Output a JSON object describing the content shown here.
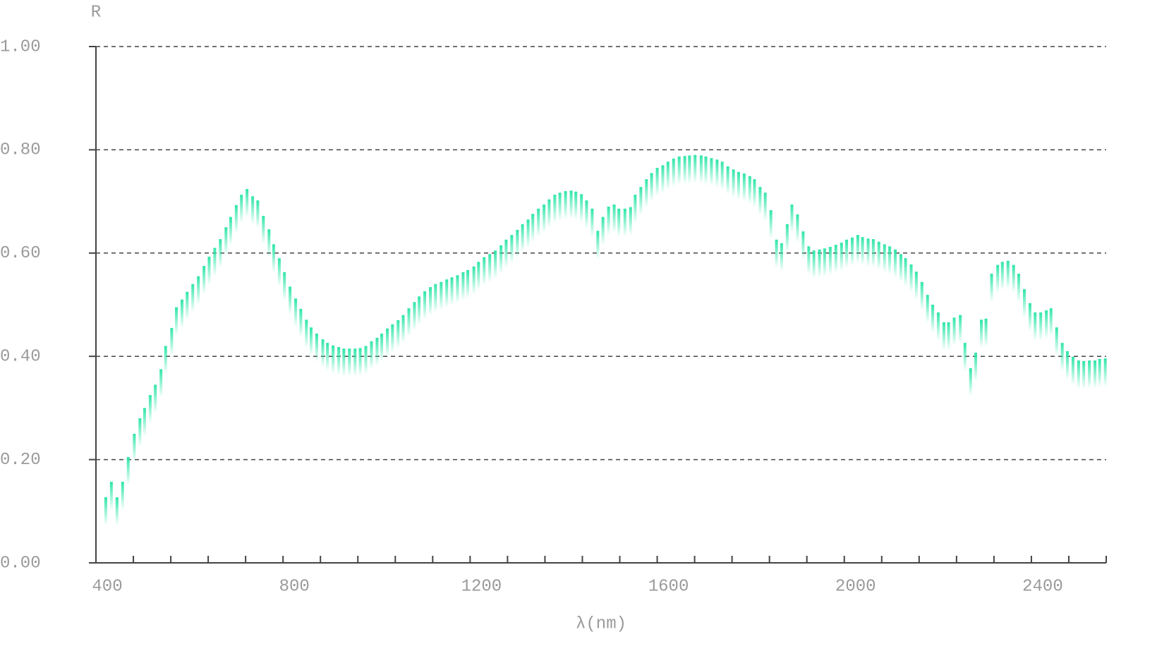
{
  "chart_data": {
    "type": "spectrum",
    "y_label": "R",
    "x_label": "λ(nm)",
    "color": "#2ee6a8",
    "grid": true,
    "xlim": [
      400,
      2560
    ],
    "ylim": [
      0,
      1
    ],
    "xticks": [
      400,
      800,
      1200,
      1600,
      2000,
      2400
    ],
    "xticks_minor": [
      400,
      480,
      560,
      640,
      720,
      800,
      880,
      960,
      1040,
      1120,
      1200,
      1280,
      1360,
      1440,
      1520,
      1600,
      1680,
      1760,
      1840,
      1920,
      2000,
      2080,
      2160,
      2240,
      2320,
      2400,
      2480,
      2560
    ],
    "yticks": [
      {
        "value": 0,
        "label": "0.00"
      },
      {
        "value": 0.2,
        "label": "0.20"
      },
      {
        "value": 0.4,
        "label": "0.40"
      },
      {
        "value": 0.6,
        "label": "0.60"
      },
      {
        "value": 0.8,
        "label": "0.80"
      },
      {
        "value": 1,
        "label": "1.00"
      }
    ],
    "x": [
      421,
      433,
      445,
      457,
      469,
      482,
      494,
      504,
      516,
      527,
      539,
      549,
      562,
      572,
      584,
      595,
      607,
      619,
      631,
      642,
      654,
      666,
      678,
      688,
      700,
      711,
      723,
      735,
      746,
      758,
      770,
      780,
      792,
      803,
      815,
      827,
      838,
      850,
      860,
      872,
      885,
      895,
      907,
      919,
      930,
      942,
      954,
      965,
      977,
      989,
      1001,
      1011,
      1023,
      1034,
      1046,
      1057,
      1069,
      1081,
      1091,
      1103,
      1115,
      1126,
      1138,
      1150,
      1161,
      1173,
      1185,
      1195,
      1208,
      1218,
      1230,
      1242,
      1254,
      1266,
      1277,
      1289,
      1301,
      1312,
      1324,
      1334,
      1346,
      1358,
      1369,
      1381,
      1392,
      1404,
      1416,
      1426,
      1438,
      1449,
      1461,
      1473,
      1484,
      1496,
      1508,
      1518,
      1531,
      1543,
      1553,
      1565,
      1577,
      1588,
      1600,
      1612,
      1623,
      1635,
      1647,
      1659,
      1669,
      1681,
      1694,
      1704,
      1716,
      1728,
      1739,
      1751,
      1763,
      1774,
      1786,
      1798,
      1808,
      1820,
      1831,
      1843,
      1855,
      1866,
      1878,
      1888,
      1900,
      1912,
      1924,
      1935,
      1947,
      1958,
      1970,
      1982,
      1994,
      2005,
      2017,
      2029,
      2039,
      2051,
      2062,
      2074,
      2086,
      2097,
      2109,
      2121,
      2131,
      2143,
      2154,
      2166,
      2178,
      2189,
      2201,
      2213,
      2223,
      2235,
      2248,
      2258,
      2270,
      2281,
      2293,
      2303,
      2315,
      2328,
      2338,
      2350,
      2362,
      2373,
      2385,
      2397,
      2408,
      2420,
      2432,
      2442,
      2454,
      2466,
      2477,
      2489,
      2501,
      2512,
      2524,
      2536,
      2546,
      2558
    ],
    "values": [
      0.127,
      0.157,
      0.127,
      0.157,
      0.205,
      0.25,
      0.28,
      0.3,
      0.325,
      0.345,
      0.375,
      0.42,
      0.455,
      0.495,
      0.51,
      0.525,
      0.54,
      0.555,
      0.575,
      0.593,
      0.61,
      0.627,
      0.65,
      0.67,
      0.693,
      0.713,
      0.724,
      0.71,
      0.702,
      0.672,
      0.646,
      0.617,
      0.59,
      0.563,
      0.535,
      0.512,
      0.492,
      0.471,
      0.456,
      0.444,
      0.433,
      0.426,
      0.421,
      0.418,
      0.415,
      0.415,
      0.415,
      0.416,
      0.42,
      0.429,
      0.436,
      0.444,
      0.454,
      0.462,
      0.47,
      0.48,
      0.493,
      0.505,
      0.516,
      0.526,
      0.534,
      0.54,
      0.544,
      0.549,
      0.553,
      0.557,
      0.563,
      0.567,
      0.574,
      0.583,
      0.592,
      0.598,
      0.605,
      0.615,
      0.626,
      0.635,
      0.645,
      0.656,
      0.665,
      0.676,
      0.686,
      0.694,
      0.704,
      0.713,
      0.717,
      0.72,
      0.721,
      0.719,
      0.714,
      0.702,
      0.686,
      0.643,
      0.67,
      0.69,
      0.694,
      0.686,
      0.686,
      0.689,
      0.713,
      0.728,
      0.743,
      0.755,
      0.765,
      0.77,
      0.777,
      0.783,
      0.787,
      0.788,
      0.789,
      0.79,
      0.789,
      0.787,
      0.784,
      0.781,
      0.777,
      0.768,
      0.762,
      0.757,
      0.754,
      0.749,
      0.743,
      0.728,
      0.717,
      0.683,
      0.626,
      0.619,
      0.656,
      0.694,
      0.675,
      0.642,
      0.613,
      0.605,
      0.607,
      0.609,
      0.612,
      0.616,
      0.62,
      0.626,
      0.63,
      0.635,
      0.631,
      0.628,
      0.627,
      0.622,
      0.617,
      0.613,
      0.607,
      0.598,
      0.59,
      0.578,
      0.564,
      0.544,
      0.519,
      0.5,
      0.485,
      0.466,
      0.466,
      0.475,
      0.48,
      0.426,
      0.377,
      0.407,
      0.471,
      0.473,
      0.56,
      0.577,
      0.583,
      0.585,
      0.577,
      0.56,
      0.53,
      0.503,
      0.485,
      0.485,
      0.489,
      0.493,
      0.456,
      0.426,
      0.41,
      0.399,
      0.392,
      0.391,
      0.392,
      0.392,
      0.395,
      0.396
    ]
  }
}
